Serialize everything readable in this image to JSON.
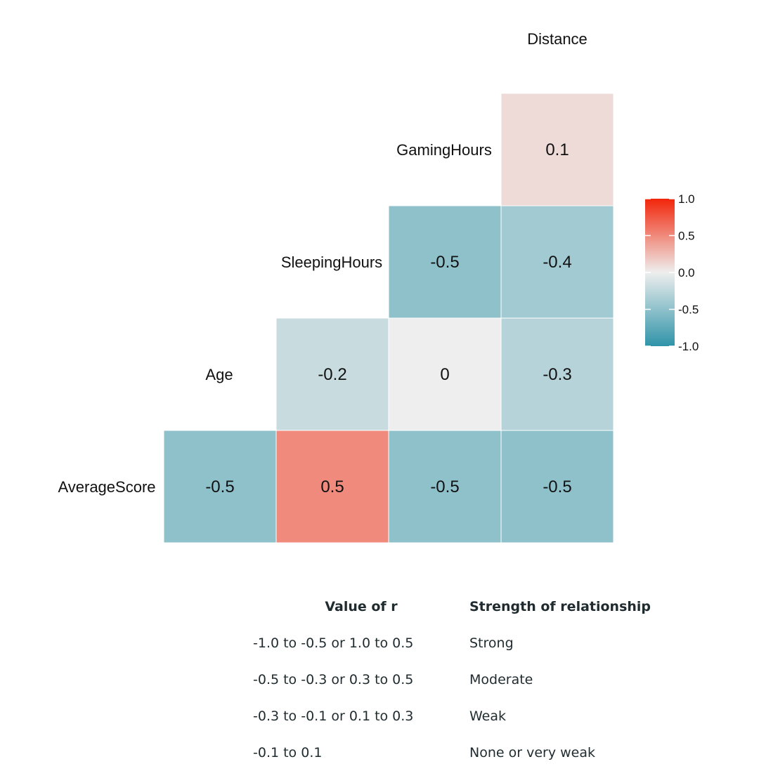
{
  "chart_data": {
    "type": "heatmap",
    "variables": [
      "AverageScore",
      "Age",
      "SleepingHours",
      "GamingHours",
      "Distance"
    ],
    "cells": [
      {
        "row": "GamingHours",
        "col": "Distance",
        "value": 0.1,
        "label": "0.1"
      },
      {
        "row": "SleepingHours",
        "col": "GamingHours",
        "value": -0.5,
        "label": "-0.5"
      },
      {
        "row": "SleepingHours",
        "col": "Distance",
        "value": -0.4,
        "label": "-0.4"
      },
      {
        "row": "Age",
        "col": "SleepingHours",
        "value": -0.2,
        "label": "-0.2"
      },
      {
        "row": "Age",
        "col": "GamingHours",
        "value": 0,
        "label": "0"
      },
      {
        "row": "Age",
        "col": "Distance",
        "value": -0.3,
        "label": "-0.3"
      },
      {
        "row": "AverageScore",
        "col": "Age",
        "value": -0.5,
        "label": "-0.5"
      },
      {
        "row": "AverageScore",
        "col": "SleepingHours",
        "value": 0.5,
        "label": "0.5"
      },
      {
        "row": "AverageScore",
        "col": "GamingHours",
        "value": -0.5,
        "label": "-0.5"
      },
      {
        "row": "AverageScore",
        "col": "Distance",
        "value": -0.5,
        "label": "-0.5"
      }
    ],
    "colorbar": {
      "range": [
        -1.0,
        1.0
      ],
      "ticks": [
        "1.0",
        "0.5",
        "0.0",
        "-0.5",
        "-1.0"
      ],
      "low_color": "#2f93a8",
      "mid_color": "#eeeeee",
      "high_color": "#f2250a"
    },
    "title": "",
    "xlabel": "",
    "ylabel": ""
  },
  "reference_table": {
    "headers": [
      "Value of r",
      "Strength of relationship"
    ],
    "rows": [
      [
        "-1.0 to -0.5 or 1.0 to 0.5",
        "Strong"
      ],
      [
        "-0.5 to -0.3 or 0.3 to 0.5",
        "Moderate"
      ],
      [
        "-0.3 to -0.1 or 0.1 to 0.3",
        "Weak"
      ],
      [
        "-0.1 to 0.1",
        "None or very weak"
      ]
    ]
  }
}
